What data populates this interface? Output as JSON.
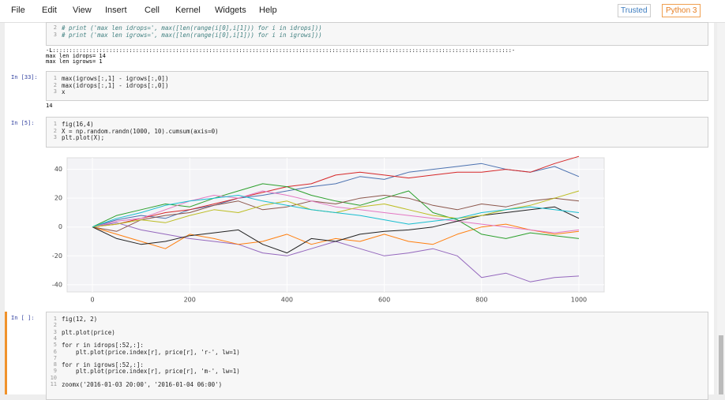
{
  "menu": [
    "File",
    "Edit",
    "View",
    "Insert",
    "Cell",
    "Kernel",
    "Widgets",
    "Help"
  ],
  "trusted": "Trusted",
  "kernel": "Python 3",
  "notebook": {
    "cells": [
      {
        "lines": [
          {
            "num": 2,
            "text": "# print ('max len idrops=', max([len(range(i[0],i[1])) for i in idrops]))"
          },
          {
            "num": 3,
            "text": "# print ('max len igrows=', max([len(range(i[0],i[1])) for i in igrows]))"
          }
        ],
        "output": [
          "-L::::::::::::::::::::::::::::::::::::::::::::::::::::::::::::::::::::::::::::::::::::::::::::::::::::::::::::::::::::::::::::::::::::::::::-",
          "max len idrops= 14",
          "max len igrows= 1"
        ]
      },
      {
        "prompt": "In [33]:",
        "lines": [
          {
            "num": 1,
            "text": "max(igrows[:,1] - igrows[:,0])"
          },
          {
            "num": 2,
            "text": "max(idrops[:,1] - idrops[:,0])"
          },
          {
            "num": 3,
            "text": "x"
          }
        ],
        "output": [
          "14"
        ]
      },
      {
        "prompt": "In [5]:",
        "lines": [
          {
            "num": 1,
            "text": "fig(16,4)"
          },
          {
            "num": 2,
            "text": "X = np.random.randn(1000, 10).cumsum(axis=0)"
          },
          {
            "num": 3,
            "text": "plt.plot(X);"
          }
        ]
      },
      {
        "prompt": "In [ ]:",
        "lines": [
          {
            "num": 1,
            "text": "fig(12, 2)"
          },
          {
            "num": 2
          },
          {
            "num": 3,
            "text": "plt.plot(price)"
          },
          {
            "num": 4
          },
          {
            "num": 5,
            "text": "for r in idrops[:52,:]:"
          },
          {
            "num": 6,
            "text": "    plt.plot(price.index[r], price[r], 'r-', lw=1)"
          },
          {
            "num": 7
          },
          {
            "num": 8,
            "text": "for r in igrows[:52,:]:"
          },
          {
            "num": 9,
            "text": "    plt.plot(price.index[r], price[r], 'm-', lw=1)"
          },
          {
            "num": 10
          },
          {
            "num": 11,
            "text": "zoomx('2016-01-03 20:00', '2016-01-04 06:00')"
          }
        ]
      }
    ]
  },
  "chart_data": {
    "type": "line",
    "x": [
      0,
      50,
      100,
      150,
      200,
      250,
      300,
      350,
      400,
      450,
      500,
      550,
      600,
      650,
      700,
      750,
      800,
      850,
      900,
      950,
      1000
    ],
    "series": [
      {
        "color": "#4c72b0",
        "values": [
          0,
          5,
          8,
          6,
          12,
          15,
          20,
          22,
          25,
          28,
          30,
          35,
          33,
          38,
          40,
          42,
          44,
          40,
          38,
          42,
          35
        ]
      },
      {
        "color": "#d62728",
        "values": [
          0,
          2,
          6,
          10,
          12,
          16,
          20,
          24,
          28,
          30,
          36,
          38,
          36,
          34,
          36,
          38,
          38,
          40,
          38,
          44,
          49
        ]
      },
      {
        "color": "#9467bd",
        "values": [
          0,
          3,
          -2,
          -5,
          -8,
          -10,
          -12,
          -18,
          -20,
          -15,
          -10,
          -15,
          -20,
          -18,
          -15,
          -20,
          -35,
          -32,
          -38,
          -35,
          -34
        ]
      },
      {
        "color": "#ff7f0e",
        "values": [
          0,
          -5,
          -10,
          -15,
          -5,
          -8,
          -12,
          -10,
          -5,
          -12,
          -8,
          -10,
          -5,
          -10,
          -12,
          -5,
          0,
          2,
          -2,
          -5,
          -3
        ]
      },
      {
        "color": "#2ca02c",
        "values": [
          0,
          8,
          12,
          16,
          14,
          20,
          25,
          30,
          28,
          22,
          18,
          15,
          20,
          25,
          10,
          5,
          -5,
          -8,
          -4,
          -6,
          -8
        ]
      },
      {
        "color": "#8c564b",
        "values": [
          0,
          -3,
          5,
          8,
          10,
          15,
          18,
          12,
          14,
          18,
          16,
          20,
          22,
          20,
          15,
          12,
          16,
          14,
          18,
          20,
          18
        ]
      },
      {
        "color": "#e377c2",
        "values": [
          0,
          4,
          6,
          12,
          18,
          22,
          20,
          25,
          22,
          18,
          14,
          12,
          10,
          8,
          6,
          4,
          2,
          0,
          -2,
          -4,
          -2
        ]
      },
      {
        "color": "#222222",
        "values": [
          0,
          -8,
          -12,
          -10,
          -6,
          -4,
          -2,
          -12,
          -18,
          -8,
          -10,
          -5,
          -3,
          -2,
          0,
          4,
          8,
          10,
          12,
          14,
          6
        ]
      },
      {
        "color": "#bcbd22",
        "values": [
          0,
          2,
          5,
          3,
          8,
          12,
          10,
          15,
          18,
          12,
          10,
          14,
          16,
          12,
          8,
          6,
          8,
          12,
          15,
          20,
          25
        ]
      },
      {
        "color": "#17becf",
        "values": [
          0,
          6,
          10,
          15,
          18,
          20,
          22,
          18,
          15,
          12,
          10,
          8,
          5,
          2,
          4,
          6,
          10,
          12,
          14,
          12,
          10
        ]
      }
    ],
    "xlim": [
      -52,
      1052
    ],
    "ylim": [
      -45,
      48
    ],
    "xticks": [
      0,
      200,
      400,
      600,
      800,
      1000
    ],
    "yticks": [
      -40,
      -20,
      0,
      20,
      40
    ],
    "grid": true
  }
}
